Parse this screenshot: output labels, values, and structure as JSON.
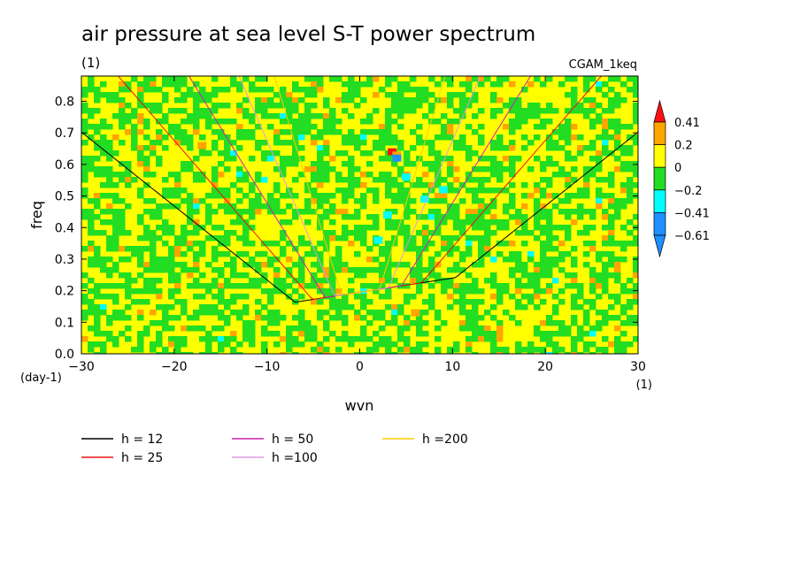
{
  "header": {
    "title": "air pressure at sea level S-T power spectrum",
    "units": "(1)",
    "model": "CGAM_1keq"
  },
  "colors": {
    "bins": [
      "#1e90ff",
      "#00ffff",
      "#22dd22",
      "#ffff00",
      "#ffa500",
      "#ff1010"
    ],
    "lines": {
      "h12": "#000000",
      "h25": "#ee1010",
      "h50": "#cc22aa",
      "h100": "#dd99dd",
      "h200": "#ffcc00"
    }
  },
  "chart_data": {
    "type": "heatmap",
    "title": "air pressure at sea level S-T power spectrum",
    "xlabel": "wvn",
    "ylabel": "freq",
    "xunits": "(1)",
    "yunits": "(day-1)",
    "xlim": [
      -30,
      30
    ],
    "ylim": [
      0,
      0.88
    ],
    "xticks": [
      -30,
      -20,
      -10,
      0,
      10,
      20,
      30
    ],
    "yticks": [
      0.0,
      0.1,
      0.2,
      0.3,
      0.4,
      0.5,
      0.6,
      0.7,
      0.8
    ],
    "colorbar": {
      "levels": [
        -0.61,
        -0.41,
        -0.2,
        0,
        0.2,
        0.41
      ],
      "labels": [
        "-0.61",
        "-0.41",
        "-0.2",
        "0",
        "0.2",
        "0.41"
      ]
    },
    "dispersion_curves": [
      {
        "name": "h = 12",
        "h": 12
      },
      {
        "name": "h = 25",
        "h": 25
      },
      {
        "name": "h = 50",
        "h": 50
      },
      {
        "name": "h =100",
        "h": 100
      },
      {
        "name": "h =200",
        "h": 200
      }
    ]
  }
}
